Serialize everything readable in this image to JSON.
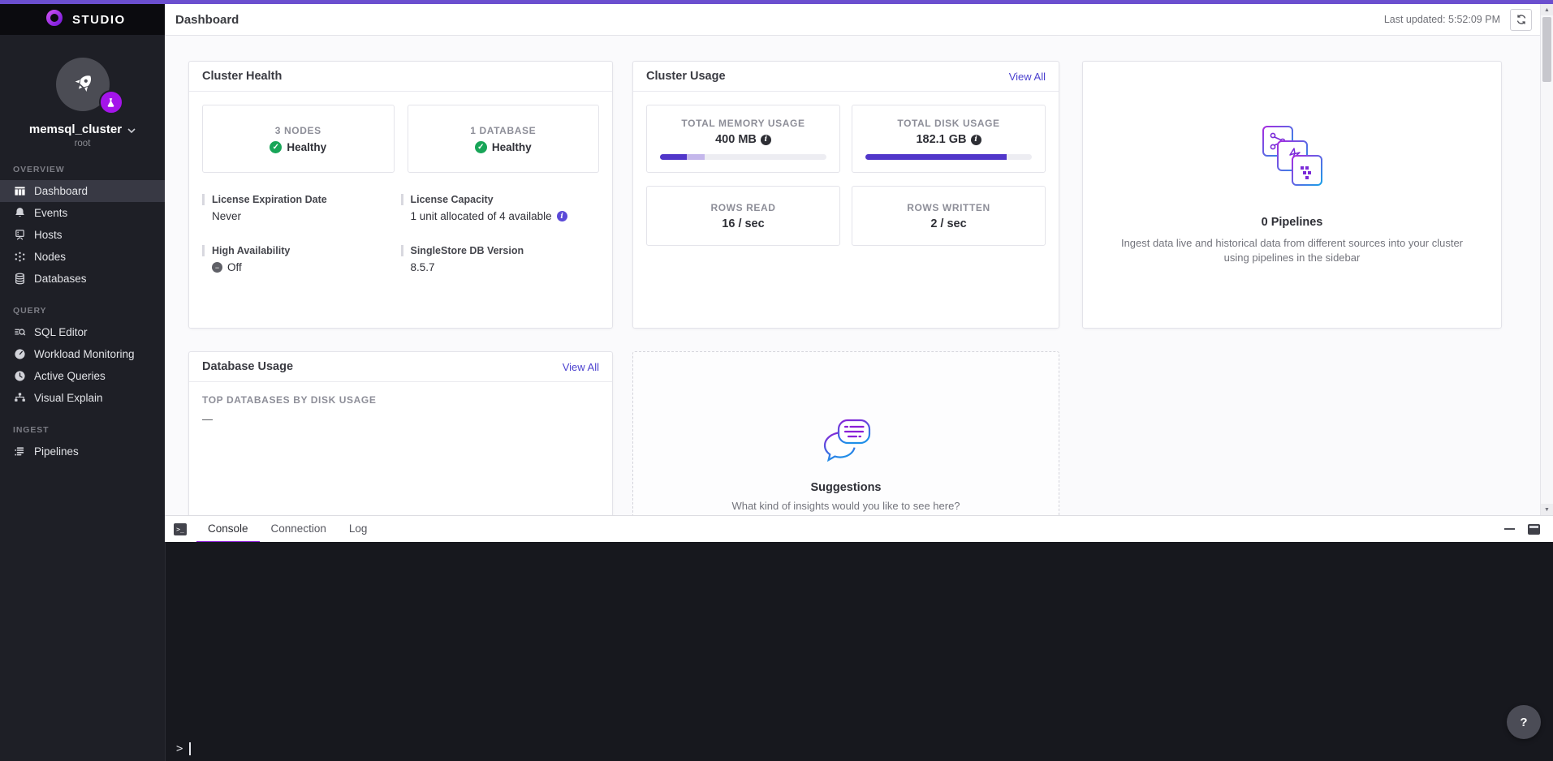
{
  "brand": {
    "name": "STUDIO"
  },
  "header": {
    "title": "Dashboard",
    "last_updated": "Last updated: 5:52:09 PM"
  },
  "sidebar": {
    "cluster_name": "memsql_cluster",
    "cluster_user": "root",
    "sections": [
      {
        "label": "OVERVIEW",
        "items": [
          {
            "label": "Dashboard",
            "icon": "dashboard-icon",
            "active": true
          },
          {
            "label": "Events",
            "icon": "bell-icon",
            "active": false
          },
          {
            "label": "Hosts",
            "icon": "host-icon",
            "active": false
          },
          {
            "label": "Nodes",
            "icon": "nodes-icon",
            "active": false
          },
          {
            "label": "Databases",
            "icon": "database-icon",
            "active": false
          }
        ]
      },
      {
        "label": "QUERY",
        "items": [
          {
            "label": "SQL Editor",
            "icon": "sql-editor-icon",
            "active": false
          },
          {
            "label": "Workload Monitoring",
            "icon": "gauge-icon",
            "active": false
          },
          {
            "label": "Active Queries",
            "icon": "clock-icon",
            "active": false
          },
          {
            "label": "Visual Explain",
            "icon": "tree-icon",
            "active": false
          }
        ]
      },
      {
        "label": "INGEST",
        "items": [
          {
            "label": "Pipelines",
            "icon": "pipelines-icon",
            "active": false
          }
        ]
      }
    ]
  },
  "cluster_health": {
    "title": "Cluster Health",
    "tiles": [
      {
        "label": "3 NODES",
        "status": "Healthy"
      },
      {
        "label": "1 DATABASE",
        "status": "Healthy"
      }
    ],
    "details": [
      {
        "label": "License Expiration Date",
        "value": "Never"
      },
      {
        "label": "License Capacity",
        "value": "1 unit allocated of 4 available"
      },
      {
        "label": "High Availability",
        "value": "Off"
      },
      {
        "label": "SingleStore DB Version",
        "value": "8.5.7"
      }
    ]
  },
  "cluster_usage": {
    "title": "Cluster Usage",
    "view_all": "View All",
    "metrics": [
      {
        "label": "TOTAL MEMORY USAGE",
        "value": "400 MB",
        "bar_primary_pct": 16,
        "bar_secondary_pct": 11
      },
      {
        "label": "TOTAL DISK USAGE",
        "value": "182.1 GB",
        "bar_primary_pct": 85,
        "bar_secondary_pct": 0
      },
      {
        "label": "ROWS READ",
        "value": "16 / sec"
      },
      {
        "label": "ROWS WRITTEN",
        "value": "2 / sec"
      }
    ]
  },
  "pipelines_card": {
    "title": "0 Pipelines",
    "description": "Ingest data live and historical data from different sources into your cluster using pipelines in the sidebar"
  },
  "database_usage": {
    "title": "Database Usage",
    "view_all": "View All",
    "metric_label": "TOP DATABASES BY DISK USAGE",
    "empty_value": "—"
  },
  "suggestions": {
    "title": "Suggestions",
    "description": "What kind of insights would you like to see here?"
  },
  "console": {
    "tabs": [
      {
        "label": "Console",
        "active": true
      },
      {
        "label": "Connection",
        "active": false
      },
      {
        "label": "Log",
        "active": false
      }
    ],
    "prompt": ">"
  },
  "help": {
    "label": "?"
  },
  "colors": {
    "top_accent": "#6b4fcf",
    "link": "#4c42cf",
    "healthy_green": "#18a558",
    "bar_primary": "#5136ca",
    "bar_secondary": "#c4b7eb",
    "badge_purple": "#a414ea",
    "active_tab_underline": "#8d1ed6"
  }
}
